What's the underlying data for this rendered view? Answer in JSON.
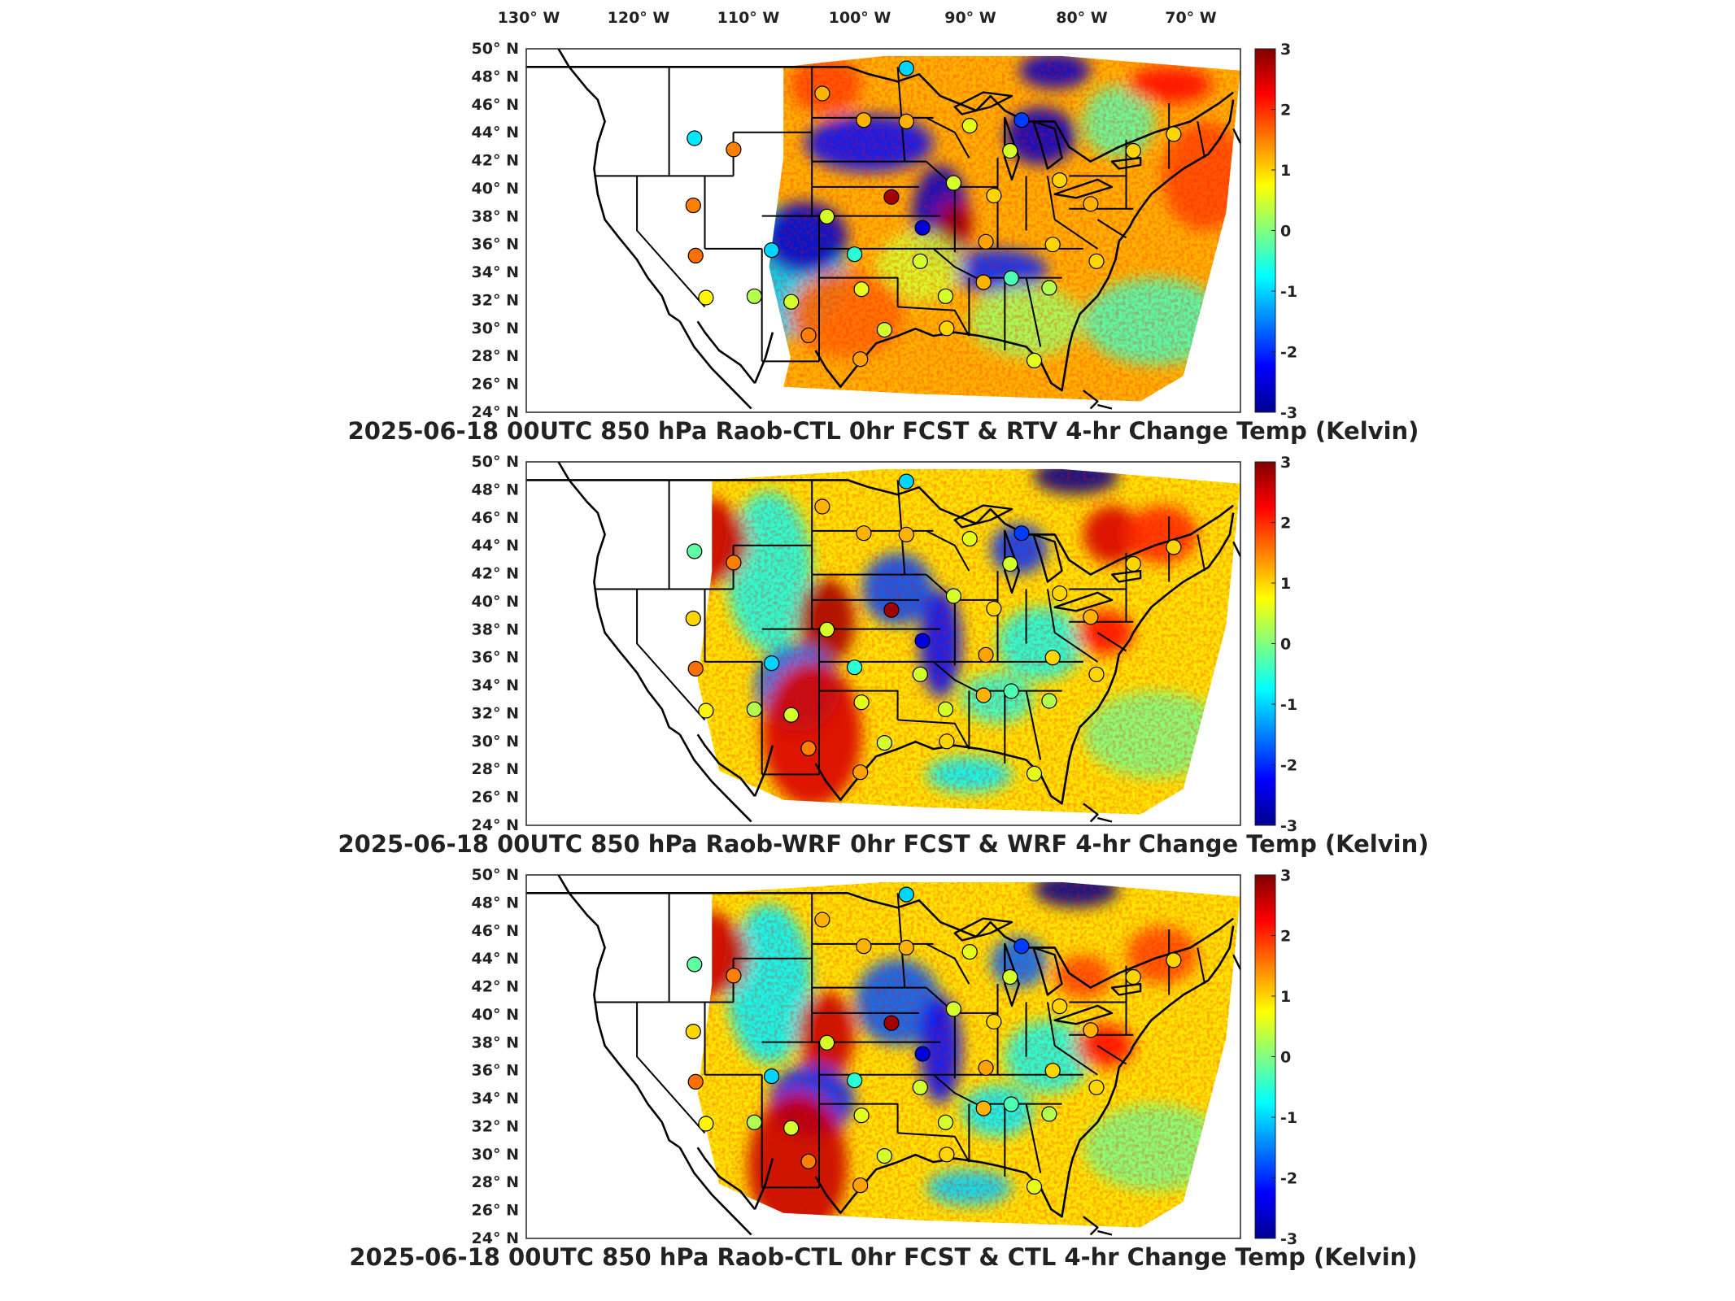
{
  "figure": {
    "lon_labels": [
      "130° W",
      "120° W",
      "110° W",
      "100° W",
      "90° W",
      "80° W",
      "70° W"
    ],
    "lat_labels": [
      "50° N",
      "48° N",
      "46° N",
      "44° N",
      "42° N",
      "40° N",
      "38° N",
      "36° N",
      "34° N",
      "32° N",
      "30° N",
      "28° N",
      "26° N",
      "24° N"
    ],
    "colorbar_ticks": [
      "3",
      "2",
      "1",
      "0",
      "-1",
      "-2",
      "-3"
    ],
    "colormap": [
      "#00008f",
      "#0000ff",
      "#0080ff",
      "#00ffff",
      "#80ff80",
      "#ffff00",
      "#ff8000",
      "#ff0000",
      "#800000"
    ]
  },
  "panels": [
    {
      "title": "2025-06-18 00UTC 850 hPa Raob-CTL 0hr FCST & RTV 4-hr Change Temp (Kelvin)"
    },
    {
      "title": "2025-06-18 00UTC 850 hPa Raob-WRF 0hr FCST & WRF 4-hr Change Temp (Kelvin)"
    },
    {
      "title": "2025-06-18 00UTC 850 hPa Raob-CTL 0hr FCST & CTL 4-hr Change Temp (Kelvin)"
    }
  ],
  "raob_stations": [
    {
      "lon": -111.9,
      "lat": 43.6,
      "v": [
        -0.9,
        -0.2,
        -0.2
      ]
    },
    {
      "lon": -108.5,
      "lat": 42.8,
      "v": [
        1.5,
        1.5,
        1.5
      ]
    },
    {
      "lon": -112.0,
      "lat": 38.8,
      "v": [
        1.5,
        1.0,
        1.0
      ]
    },
    {
      "lon": -111.8,
      "lat": 35.2,
      "v": [
        1.6,
        1.6,
        1.6
      ]
    },
    {
      "lon": -110.9,
      "lat": 32.2,
      "v": [
        0.8,
        0.8,
        0.8
      ]
    },
    {
      "lon": -106.7,
      "lat": 32.3,
      "v": [
        0.3,
        0.3,
        0.3
      ]
    },
    {
      "lon": -105.2,
      "lat": 35.6,
      "v": [
        -1.0,
        -1.0,
        -1.0
      ]
    },
    {
      "lon": -103.5,
      "lat": 31.9,
      "v": [
        0.5,
        0.5,
        0.5
      ]
    },
    {
      "lon": -100.4,
      "lat": 38.0,
      "v": [
        0.5,
        0.5,
        0.5
      ]
    },
    {
      "lon": -98.0,
      "lat": 35.3,
      "v": [
        -0.5,
        -0.5,
        -0.5
      ]
    },
    {
      "lon": -97.4,
      "lat": 32.8,
      "v": [
        0.6,
        0.6,
        0.6
      ]
    },
    {
      "lon": -94.8,
      "lat": 39.4,
      "v": [
        2.8,
        2.8,
        2.8
      ]
    },
    {
      "lon": -92.1,
      "lat": 37.2,
      "v": [
        -2.5,
        -2.5,
        -2.5
      ]
    },
    {
      "lon": -100.8,
      "lat": 46.8,
      "v": [
        1.2,
        1.2,
        1.2
      ]
    },
    {
      "lon": -97.2,
      "lat": 44.9,
      "v": [
        1.2,
        1.2,
        1.2
      ]
    },
    {
      "lon": -93.5,
      "lat": 44.8,
      "v": [
        1.2,
        1.2,
        1.2
      ]
    },
    {
      "lon": -93.5,
      "lat": 48.6,
      "v": [
        -1.0,
        -1.0,
        -1.0
      ]
    },
    {
      "lon": -88.0,
      "lat": 44.5,
      "v": [
        0.6,
        0.6,
        0.6
      ]
    },
    {
      "lon": -83.5,
      "lat": 44.9,
      "v": [
        -1.9,
        -1.9,
        -1.9
      ]
    },
    {
      "lon": -84.5,
      "lat": 42.7,
      "v": [
        0.5,
        0.5,
        0.5
      ]
    },
    {
      "lon": -89.4,
      "lat": 40.4,
      "v": [
        0.5,
        0.5,
        0.5
      ]
    },
    {
      "lon": -85.9,
      "lat": 39.5,
      "v": [
        1.0,
        1.0,
        1.0
      ]
    },
    {
      "lon": -80.2,
      "lat": 40.6,
      "v": [
        1.0,
        1.0,
        1.0
      ]
    },
    {
      "lon": -86.6,
      "lat": 36.2,
      "v": [
        1.3,
        1.3,
        1.3
      ]
    },
    {
      "lon": -80.8,
      "lat": 36.0,
      "v": [
        1.0,
        1.0,
        1.0
      ]
    },
    {
      "lon": -92.3,
      "lat": 34.8,
      "v": [
        0.5,
        0.5,
        0.5
      ]
    },
    {
      "lon": -90.1,
      "lat": 32.3,
      "v": [
        0.5,
        0.5,
        0.5
      ]
    },
    {
      "lon": -86.8,
      "lat": 33.3,
      "v": [
        1.2,
        1.2,
        1.2
      ]
    },
    {
      "lon": -84.4,
      "lat": 33.6,
      "v": [
        -0.3,
        -0.3,
        -0.3
      ]
    },
    {
      "lon": -81.1,
      "lat": 32.9,
      "v": [
        0.3,
        0.3,
        0.3
      ]
    },
    {
      "lon": -90.0,
      "lat": 30.0,
      "v": [
        1.0,
        1.0,
        1.0
      ]
    },
    {
      "lon": -95.4,
      "lat": 29.9,
      "v": [
        0.5,
        0.5,
        0.5
      ]
    },
    {
      "lon": -97.5,
      "lat": 27.8,
      "v": [
        1.3,
        1.3,
        1.3
      ]
    },
    {
      "lon": -102.0,
      "lat": 29.5,
      "v": [
        1.5,
        1.5,
        1.5
      ]
    },
    {
      "lon": -82.4,
      "lat": 27.7,
      "v": [
        0.6,
        0.6,
        0.6
      ]
    },
    {
      "lon": -77.5,
      "lat": 38.9,
      "v": [
        1.2,
        1.2,
        1.2
      ]
    },
    {
      "lon": -73.8,
      "lat": 42.7,
      "v": [
        1.0,
        1.0,
        1.0
      ]
    },
    {
      "lon": -70.3,
      "lat": 43.9,
      "v": [
        1.0,
        1.0,
        1.0
      ]
    },
    {
      "lon": -77.0,
      "lat": 34.8,
      "v": [
        1.0,
        1.0,
        1.0
      ]
    }
  ]
}
